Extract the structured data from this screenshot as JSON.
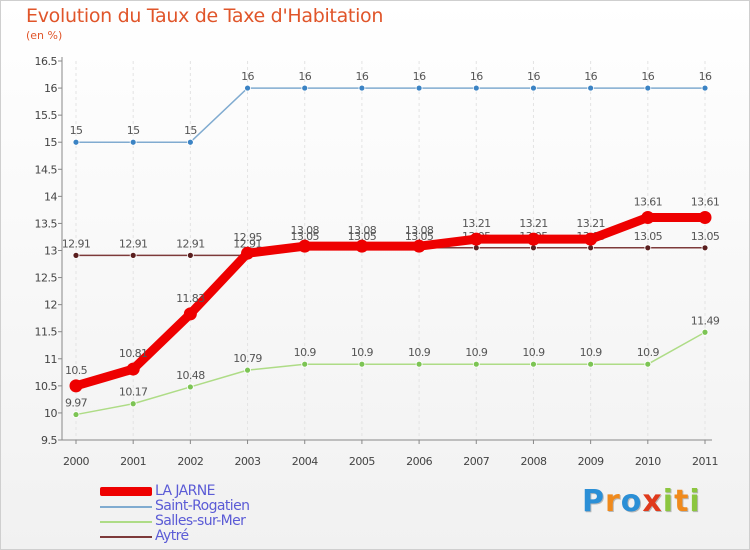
{
  "chart_data": {
    "type": "line",
    "title": "Evolution du Taux de Taxe d'Habitation",
    "subtitle": "(en %)",
    "x": [
      "2000",
      "2001",
      "2002",
      "2003",
      "2004",
      "2005",
      "2006",
      "2007",
      "2008",
      "2009",
      "2010",
      "2011"
    ],
    "ylim": [
      9.5,
      16.5
    ],
    "yticks": [
      "9.5",
      "10",
      "10.5",
      "11",
      "11.5",
      "12",
      "12.5",
      "13",
      "13.5",
      "14",
      "14.5",
      "15",
      "15.5",
      "16",
      "16.5"
    ],
    "grid": "vertical",
    "legend_position": "bottom-left",
    "series": [
      {
        "name": "Saint-Rogatien",
        "color": "#80abd0",
        "marker_color": "#3b83c4",
        "values": [
          15,
          15,
          15,
          16,
          16,
          16,
          16,
          16,
          16,
          16,
          16,
          16
        ],
        "labels": [
          "15",
          "15",
          "15",
          "16",
          "16",
          "16",
          "16",
          "16",
          "16",
          "16",
          "16",
          "16"
        ]
      },
      {
        "name": "Aytré",
        "color": "#7d3a3a",
        "marker_color": "#5a1f1f",
        "values": [
          12.91,
          12.91,
          12.91,
          12.91,
          13.05,
          13.05,
          13.05,
          13.05,
          13.05,
          13.05,
          13.05,
          13.05
        ],
        "labels": [
          "12.91",
          "12.91",
          "12.91",
          "12.91",
          "13.05",
          "13.05",
          "13.05",
          "13.05",
          "13.05",
          "13.05",
          "13.05",
          "13.05"
        ]
      },
      {
        "name": "Salles-sur-Mer",
        "color": "#aedc86",
        "marker_color": "#7cc454",
        "values": [
          9.97,
          10.17,
          10.48,
          10.79,
          10.9,
          10.9,
          10.9,
          10.9,
          10.9,
          10.9,
          10.9,
          11.49
        ],
        "labels": [
          "9.97",
          "10.17",
          "10.48",
          "10.79",
          "10.9",
          "10.9",
          "10.9",
          "10.9",
          "10.9",
          "10.9",
          "10.9",
          "11.49"
        ]
      },
      {
        "name": "LA JARNE",
        "color": "#ee0000",
        "marker_color": "#ee0000",
        "values": [
          10.5,
          10.81,
          11.83,
          12.95,
          13.08,
          13.08,
          13.08,
          13.21,
          13.21,
          13.21,
          13.61,
          13.61
        ],
        "labels": [
          "10.5",
          "10.81",
          "11.83",
          "12.95",
          "13.08",
          "13.08",
          "13.08",
          "13.21",
          "13.21",
          "13.21",
          "13.61",
          "13.61"
        ]
      }
    ],
    "legend": [
      {
        "name": "LA JARNE",
        "color": "#ee0000",
        "thick": true
      },
      {
        "name": "Saint-Rogatien",
        "color": "#80abd0",
        "thick": false
      },
      {
        "name": "Salles-sur-Mer",
        "color": "#aedc86",
        "thick": false
      },
      {
        "name": "Aytré",
        "color": "#7d3a3a",
        "thick": false
      }
    ]
  },
  "brand": {
    "letters": [
      "P",
      "r",
      "o",
      "x",
      "i",
      "t",
      "i"
    ],
    "colors": [
      "#2b8fd6",
      "#f08a1c",
      "#2b8fd6",
      "#e03a1c",
      "#8cc63f",
      "#f08a1c",
      "#8cc63f"
    ]
  }
}
